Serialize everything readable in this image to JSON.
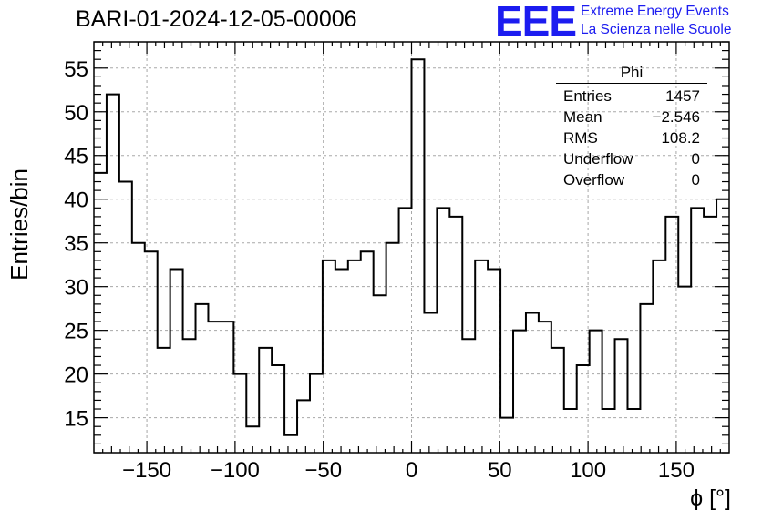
{
  "title": "BARI-01-2024-12-05-00006",
  "logo": {
    "mark": "EEE",
    "line1": "Extreme Energy Events",
    "line2": "La Scienza nelle Scuole",
    "color": "#1c1cf0"
  },
  "stats_box": {
    "title": "Phi",
    "rows": [
      {
        "label": "Entries",
        "value": "1457"
      },
      {
        "label": "Mean",
        "value": "−2.546"
      },
      {
        "label": "RMS",
        "value": "108.2"
      },
      {
        "label": "Underflow",
        "value": "0"
      },
      {
        "label": "Overflow",
        "value": "0"
      }
    ]
  },
  "chart_data": {
    "type": "histogram",
    "title": "BARI-01-2024-12-05-00006",
    "xlabel": "ϕ [°]",
    "ylabel": "Entries/bin",
    "xlim": [
      -180,
      180
    ],
    "ylim": [
      11,
      58
    ],
    "bin_width": 7.2,
    "x_ticks": [
      -150,
      -100,
      -50,
      0,
      50,
      100,
      150
    ],
    "x_tick_labels": [
      "−150",
      "−100",
      "−50",
      "0",
      "50",
      "100",
      "150"
    ],
    "y_ticks": [
      15,
      20,
      25,
      30,
      35,
      40,
      45,
      50,
      55
    ],
    "y_tick_labels": [
      "15",
      "20",
      "25",
      "30",
      "35",
      "40",
      "45",
      "50",
      "55"
    ],
    "grid": true,
    "legend": "top-right stats box",
    "values": [
      43,
      52,
      42,
      35,
      34,
      23,
      32,
      24,
      28,
      26,
      26,
      20,
      14,
      23,
      21,
      13,
      17,
      20,
      33,
      32,
      33,
      34,
      29,
      35,
      39,
      56,
      27,
      39,
      38,
      24,
      33,
      32,
      15,
      25,
      27,
      26,
      23,
      16,
      21,
      25,
      16,
      24,
      16,
      28,
      33,
      38,
      30,
      39,
      38,
      40
    ]
  }
}
